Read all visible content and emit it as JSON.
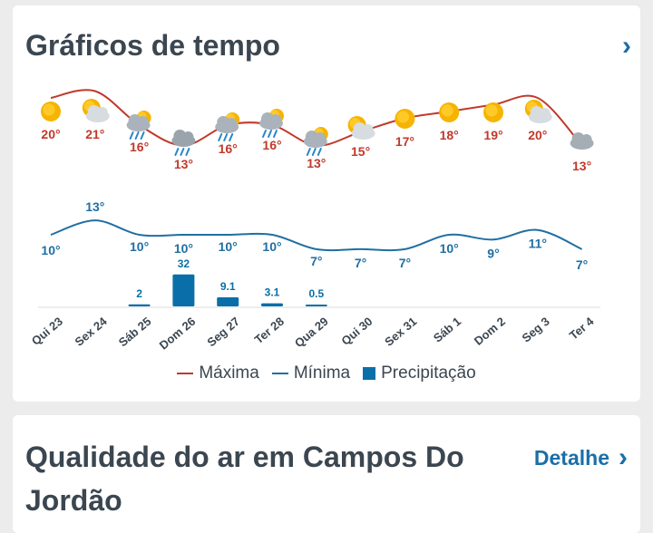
{
  "card_weather": {
    "title": "Gráficos de tempo",
    "chevron": "›"
  },
  "card_air": {
    "title": "Qualidade do ar em Campos Do Jordão",
    "detail_label": "Detalhe",
    "chevron": "›"
  },
  "colors": {
    "max": "#c0392b",
    "min": "#1f6fa3",
    "precip": "#0a6fa8",
    "text": "#3b4650"
  },
  "chart_data": {
    "type": "line",
    "days": [
      "Qui 23",
      "Sex 24",
      "Sáb 25",
      "Dom 26",
      "Seg 27",
      "Ter 28",
      "Qua 29",
      "Qui 30",
      "Sex 31",
      "Sáb 1",
      "Dom 2",
      "Seg 3",
      "Ter 4"
    ],
    "icons": [
      "sun-icon",
      "sun-cloud-icon",
      "sun-rain-icon",
      "rain-cloud-icon",
      "sun-rain-icon",
      "sun-rain-icon",
      "sun-rain-icon",
      "sun-cloud-icon",
      "sun-icon",
      "sun-icon",
      "sun-icon",
      "sun-cloud-icon",
      "cloud-icon"
    ],
    "series": [
      {
        "name": "Máxima",
        "values": [
          20,
          21,
          16,
          13,
          16,
          16,
          13,
          15,
          17,
          18,
          19,
          20,
          13
        ]
      },
      {
        "name": "Mínima",
        "values": [
          10,
          13,
          10,
          10,
          10,
          10,
          7,
          7,
          7,
          10,
          9,
          11,
          7
        ]
      },
      {
        "name": "Precipitação",
        "values": [
          null,
          null,
          2,
          32,
          9.1,
          3.1,
          0.5,
          null,
          null,
          null,
          null,
          null,
          null
        ]
      }
    ],
    "precip_labels": [
      "",
      "",
      "2",
      "32",
      "9.1",
      "3.1",
      "0.5",
      "",
      "",
      "",
      "",
      "",
      ""
    ],
    "max_labels": [
      "20°",
      "21°",
      "16°",
      "13°",
      "16°",
      "16°",
      "13°",
      "15°",
      "17°",
      "18°",
      "19°",
      "20°",
      "13°"
    ],
    "min_labels": [
      "10°",
      "13°",
      "10°",
      "10°",
      "10°",
      "10°",
      "7°",
      "7°",
      "7°",
      "10°",
      "9°",
      "11°",
      "7°"
    ]
  },
  "legend": [
    {
      "label": "Máxima",
      "color": "#c0392b",
      "shape": "line"
    },
    {
      "label": "Mínima",
      "color": "#1f6fa3",
      "shape": "line"
    },
    {
      "label": "Precipitação",
      "color": "#0a6fa8",
      "shape": "box"
    }
  ]
}
